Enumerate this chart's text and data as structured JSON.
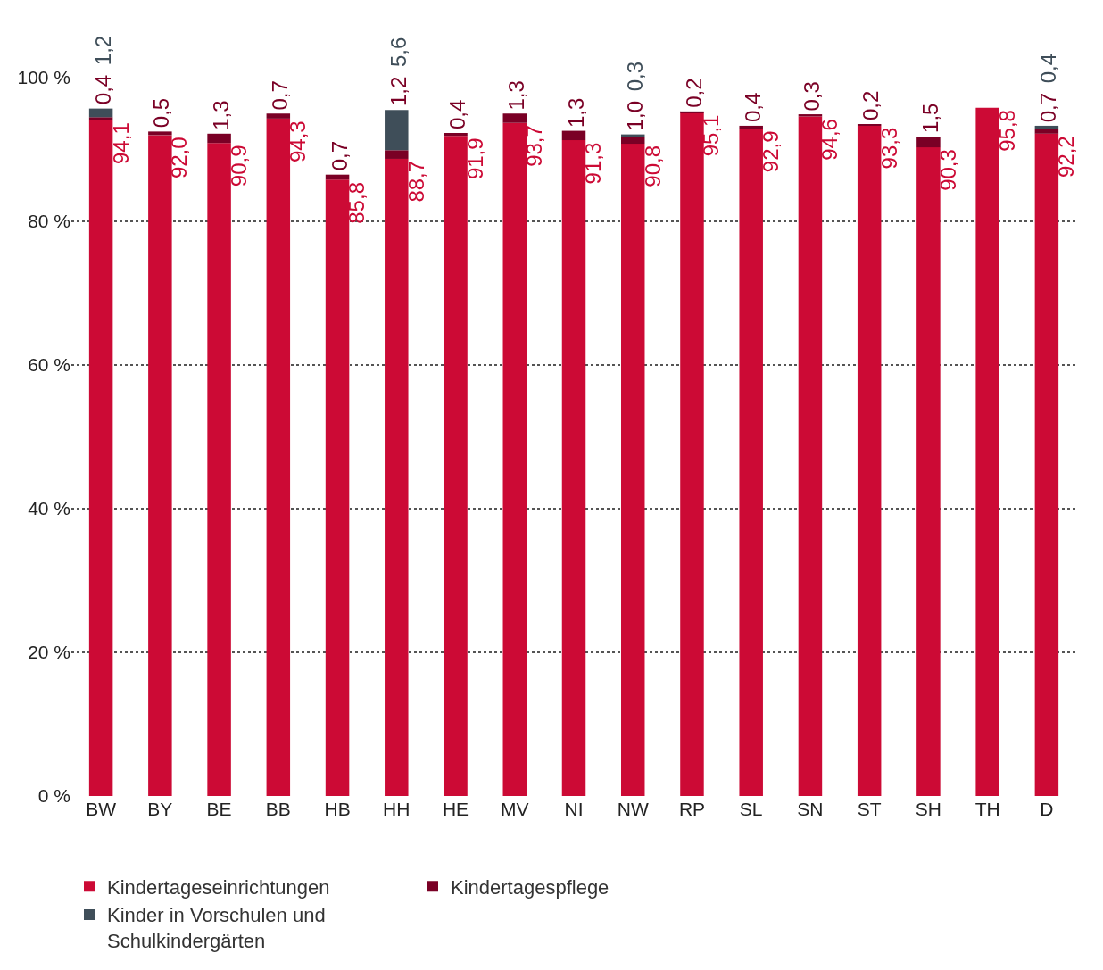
{
  "chart_data": {
    "type": "bar",
    "stacked": true,
    "categories": [
      "BW",
      "BY",
      "BE",
      "BB",
      "HB",
      "HH",
      "HE",
      "MV",
      "NI",
      "NW",
      "RP",
      "SL",
      "SN",
      "ST",
      "SH",
      "TH",
      "D"
    ],
    "series": [
      {
        "name": "Kindertageseinrichtungen",
        "color": "#cc0a35",
        "values": [
          94.1,
          92.0,
          90.9,
          94.3,
          85.8,
          88.7,
          91.9,
          93.7,
          91.3,
          90.8,
          95.1,
          92.9,
          94.6,
          93.3,
          90.3,
          95.8,
          92.2
        ],
        "value_labels": [
          "94,1",
          "92,0",
          "90,9",
          "94,3",
          "85,8",
          "88,7",
          "91,9",
          "93,7",
          "91,3",
          "90,8",
          "95,1",
          "92,9",
          "94,6",
          "93,3",
          "90,3",
          "95,8",
          "92,2"
        ]
      },
      {
        "name": "Kindertagespflege",
        "color": "#7a0025",
        "values": [
          0.4,
          0.5,
          1.3,
          0.7,
          0.7,
          1.2,
          0.4,
          1.3,
          1.3,
          1.0,
          0.2,
          0.4,
          0.3,
          0.2,
          1.5,
          null,
          0.7
        ],
        "value_labels": [
          "0,4",
          "0,5",
          "1,3",
          "0,7",
          "0,7",
          "1,2",
          "0,4",
          "1,3",
          "1,3",
          "1,0",
          "0,2",
          "0,4",
          "0,3",
          "0,2",
          "1,5",
          null,
          "0,7"
        ]
      },
      {
        "name": "Kinder in Vorschulen und Schulkindergärten",
        "color": "#3f4e59",
        "values": [
          1.2,
          null,
          null,
          null,
          null,
          5.6,
          null,
          null,
          null,
          0.3,
          null,
          null,
          null,
          null,
          null,
          null,
          0.4
        ],
        "value_labels": [
          "1,2",
          null,
          null,
          null,
          null,
          "5,6",
          null,
          null,
          null,
          "0,3",
          null,
          null,
          null,
          null,
          null,
          null,
          "0,4"
        ]
      }
    ],
    "ylim": [
      0,
      100
    ],
    "yticks": [
      {
        "value": 0,
        "label": "0 %"
      },
      {
        "value": 20,
        "label": "20 %"
      },
      {
        "value": 40,
        "label": "40 %"
      },
      {
        "value": 60,
        "label": "60 %"
      },
      {
        "value": 80,
        "label": "80 %"
      },
      {
        "value": 100,
        "label": "100 %"
      }
    ],
    "grid": "y",
    "legend": "bottom"
  }
}
